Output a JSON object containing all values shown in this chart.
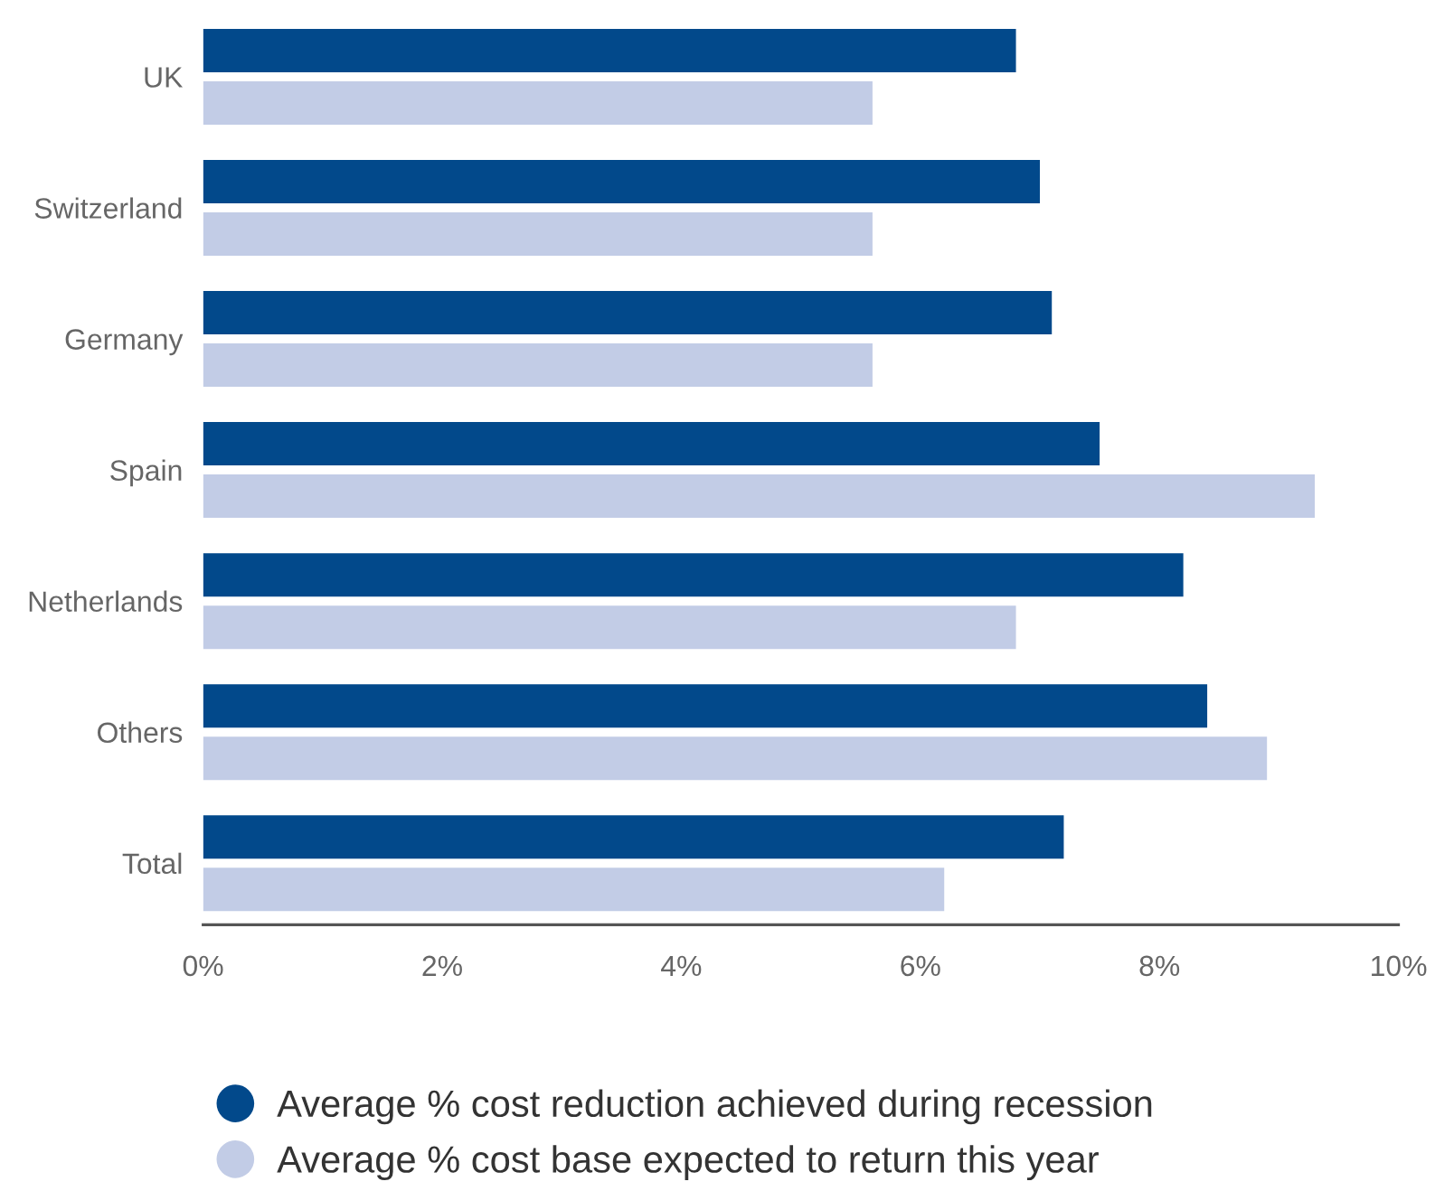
{
  "chart_data": {
    "type": "bar",
    "orientation": "horizontal",
    "categories": [
      "UK",
      "Switzerland",
      "Germany",
      "Spain",
      "Netherlands",
      "Others",
      "Total"
    ],
    "series": [
      {
        "name": "Average % cost reduction achieved during recession",
        "color": "#02498b",
        "values": [
          6.8,
          7.0,
          7.1,
          7.5,
          8.2,
          8.4,
          7.2
        ]
      },
      {
        "name": "Average % cost base expected to return this year",
        "color": "#c2cce6",
        "values": [
          5.6,
          5.6,
          5.6,
          9.3,
          6.8,
          8.9,
          6.2
        ]
      }
    ],
    "xlim": [
      0,
      10
    ],
    "xticks": [
      {
        "value": 0,
        "label": "0%"
      },
      {
        "value": 2,
        "label": "2%"
      },
      {
        "value": 4,
        "label": "4%"
      },
      {
        "value": 6,
        "label": "6%"
      },
      {
        "value": 8,
        "label": "8%"
      },
      {
        "value": 10,
        "label": "10%"
      }
    ],
    "grid": false,
    "legend": "bottom"
  }
}
